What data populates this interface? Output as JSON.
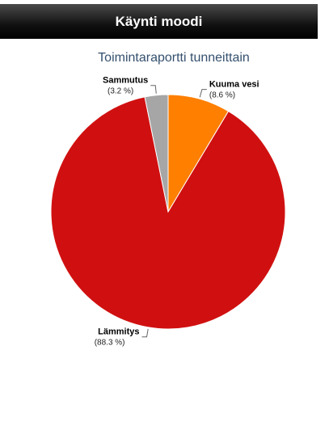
{
  "header": {
    "title": "Käynti moodi"
  },
  "chart_data": {
    "type": "pie",
    "title": "Toimintaraportti tunneittain",
    "categories": [
      "Kuuma vesi",
      "Lämmitys",
      "Sammutus"
    ],
    "values": [
      8.6,
      88.3,
      3.2
    ],
    "value_labels": [
      "(8.6 %)",
      "(88.3 %)",
      "(3.2 %)"
    ],
    "colors": [
      "#ff7f00",
      "#d01010",
      "#a6a6a6"
    ]
  }
}
